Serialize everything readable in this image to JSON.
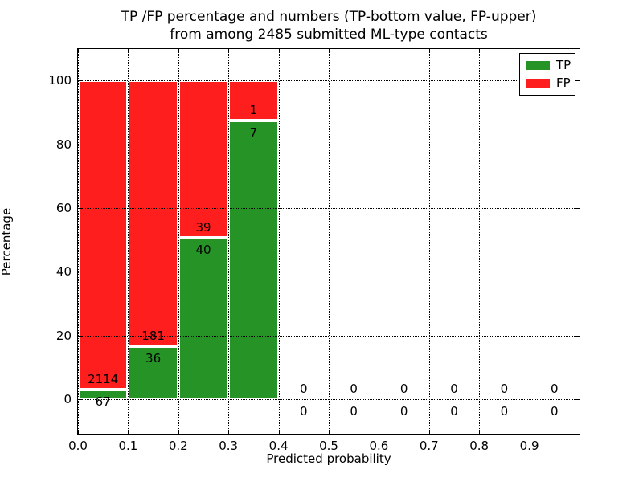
{
  "chart_data": {
    "type": "bar",
    "stacked": true,
    "title_line1": "TP /FP percentage and numbers (TP-bottom value, FP-upper)",
    "title_line2": "from among 2485 submitted ML-type contacts",
    "total_contacts": 2485,
    "xlabel": "Predicted probability",
    "ylabel": "Percentage",
    "x_tick_values": [
      0.0,
      0.1,
      0.2,
      0.3,
      0.4,
      0.5,
      0.6,
      0.7,
      0.8,
      0.9
    ],
    "x_tick_labels": [
      "0.0",
      "0.1",
      "0.2",
      "0.3",
      "0.4",
      "0.5",
      "0.6",
      "0.7",
      "0.8",
      "0.9"
    ],
    "y_tick_values": [
      0,
      20,
      40,
      60,
      80,
      100
    ],
    "y_tick_labels": [
      "0",
      "20",
      "40",
      "60",
      "80",
      "100"
    ],
    "xlim": [
      0.0,
      1.0
    ],
    "ylim": [
      -10.85,
      109.9
    ],
    "bin_width": 0.1,
    "grid": "dotted, black, drawn above bars",
    "legend_position": "upper right",
    "legend_entries": [
      {
        "label": "TP",
        "color": "#269326"
      },
      {
        "label": "FP",
        "color": "#ff1e1e"
      }
    ],
    "colors": {
      "tp": "#269326",
      "fp": "#ff1e1e",
      "bar_edge": "#ffffff"
    },
    "bins": [
      {
        "x_start": 0.0,
        "x_end": 0.1,
        "tp": 67,
        "fp": 2114
      },
      {
        "x_start": 0.1,
        "x_end": 0.2,
        "tp": 36,
        "fp": 181
      },
      {
        "x_start": 0.2,
        "x_end": 0.3,
        "tp": 40,
        "fp": 39
      },
      {
        "x_start": 0.3,
        "x_end": 0.4,
        "tp": 7,
        "fp": 1
      },
      {
        "x_start": 0.4,
        "x_end": 0.5,
        "tp": 0,
        "fp": 0
      },
      {
        "x_start": 0.5,
        "x_end": 0.6,
        "tp": 0,
        "fp": 0
      },
      {
        "x_start": 0.6,
        "x_end": 0.7,
        "tp": 0,
        "fp": 0
      },
      {
        "x_start": 0.7,
        "x_end": 0.8,
        "tp": 0,
        "fp": 0
      },
      {
        "x_start": 0.8,
        "x_end": 0.9,
        "tp": 0,
        "fp": 0
      },
      {
        "x_start": 0.9,
        "x_end": 1.0,
        "tp": 0,
        "fp": 0
      }
    ]
  }
}
